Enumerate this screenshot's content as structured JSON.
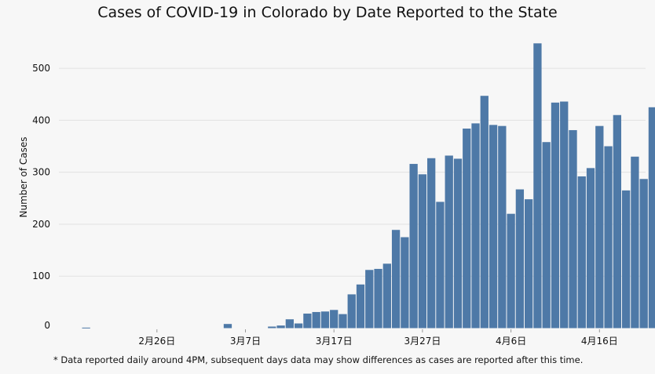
{
  "chart_data": {
    "type": "bar",
    "title": "Cases of COVID-19 in Colorado by Date Reported to the State",
    "xlabel": "",
    "ylabel": "Number of Cases",
    "ylim": [
      -10,
      560
    ],
    "yticks": [
      0,
      100,
      200,
      300,
      400,
      500
    ],
    "xticks": [
      "2月26日",
      "3月7日",
      "3月17日",
      "3月27日",
      "4月6日",
      "4月16日"
    ],
    "grid": true,
    "color": "#4e79a7",
    "footnote": "* Data reported daily around 4PM, subsequent days data may show differences as cases are reported after this time.",
    "x": [
      "2020-02-18",
      "2020-02-19",
      "2020-02-20",
      "2020-02-21",
      "2020-02-22",
      "2020-02-23",
      "2020-02-24",
      "2020-02-25",
      "2020-02-26",
      "2020-02-27",
      "2020-02-28",
      "2020-02-29",
      "2020-03-01",
      "2020-03-02",
      "2020-03-03",
      "2020-03-04",
      "2020-03-05",
      "2020-03-06",
      "2020-03-07",
      "2020-03-08",
      "2020-03-09",
      "2020-03-10",
      "2020-03-11",
      "2020-03-12",
      "2020-03-13",
      "2020-03-14",
      "2020-03-15",
      "2020-03-16",
      "2020-03-17",
      "2020-03-18",
      "2020-03-19",
      "2020-03-20",
      "2020-03-21",
      "2020-03-22",
      "2020-03-23",
      "2020-03-24",
      "2020-03-25",
      "2020-03-26",
      "2020-03-27",
      "2020-03-28",
      "2020-03-29",
      "2020-03-30",
      "2020-03-31",
      "2020-04-01",
      "2020-04-02",
      "2020-04-03",
      "2020-04-04",
      "2020-04-05",
      "2020-04-06",
      "2020-04-07",
      "2020-04-08",
      "2020-04-09",
      "2020-04-10",
      "2020-04-11",
      "2020-04-12",
      "2020-04-13",
      "2020-04-14",
      "2020-04-15",
      "2020-04-16",
      "2020-04-17",
      "2020-04-18",
      "2020-04-19",
      "2020-04-20",
      "2020-04-21",
      "2020-04-22",
      "2020-04-23"
    ],
    "values": [
      1,
      0,
      0,
      0,
      0,
      0,
      0,
      0,
      0,
      0,
      0,
      0,
      0,
      0,
      0,
      0,
      8,
      0,
      0,
      0,
      0,
      3,
      5,
      17,
      9,
      28,
      31,
      32,
      35,
      27,
      65,
      84,
      112,
      114,
      124,
      189,
      175,
      316,
      296,
      327,
      243,
      332,
      326,
      384,
      394,
      447,
      391,
      389,
      220,
      267,
      248,
      548,
      358,
      434,
      436,
      381,
      292,
      308,
      389,
      350,
      410,
      265,
      330,
      287,
      425,
      0
    ]
  }
}
